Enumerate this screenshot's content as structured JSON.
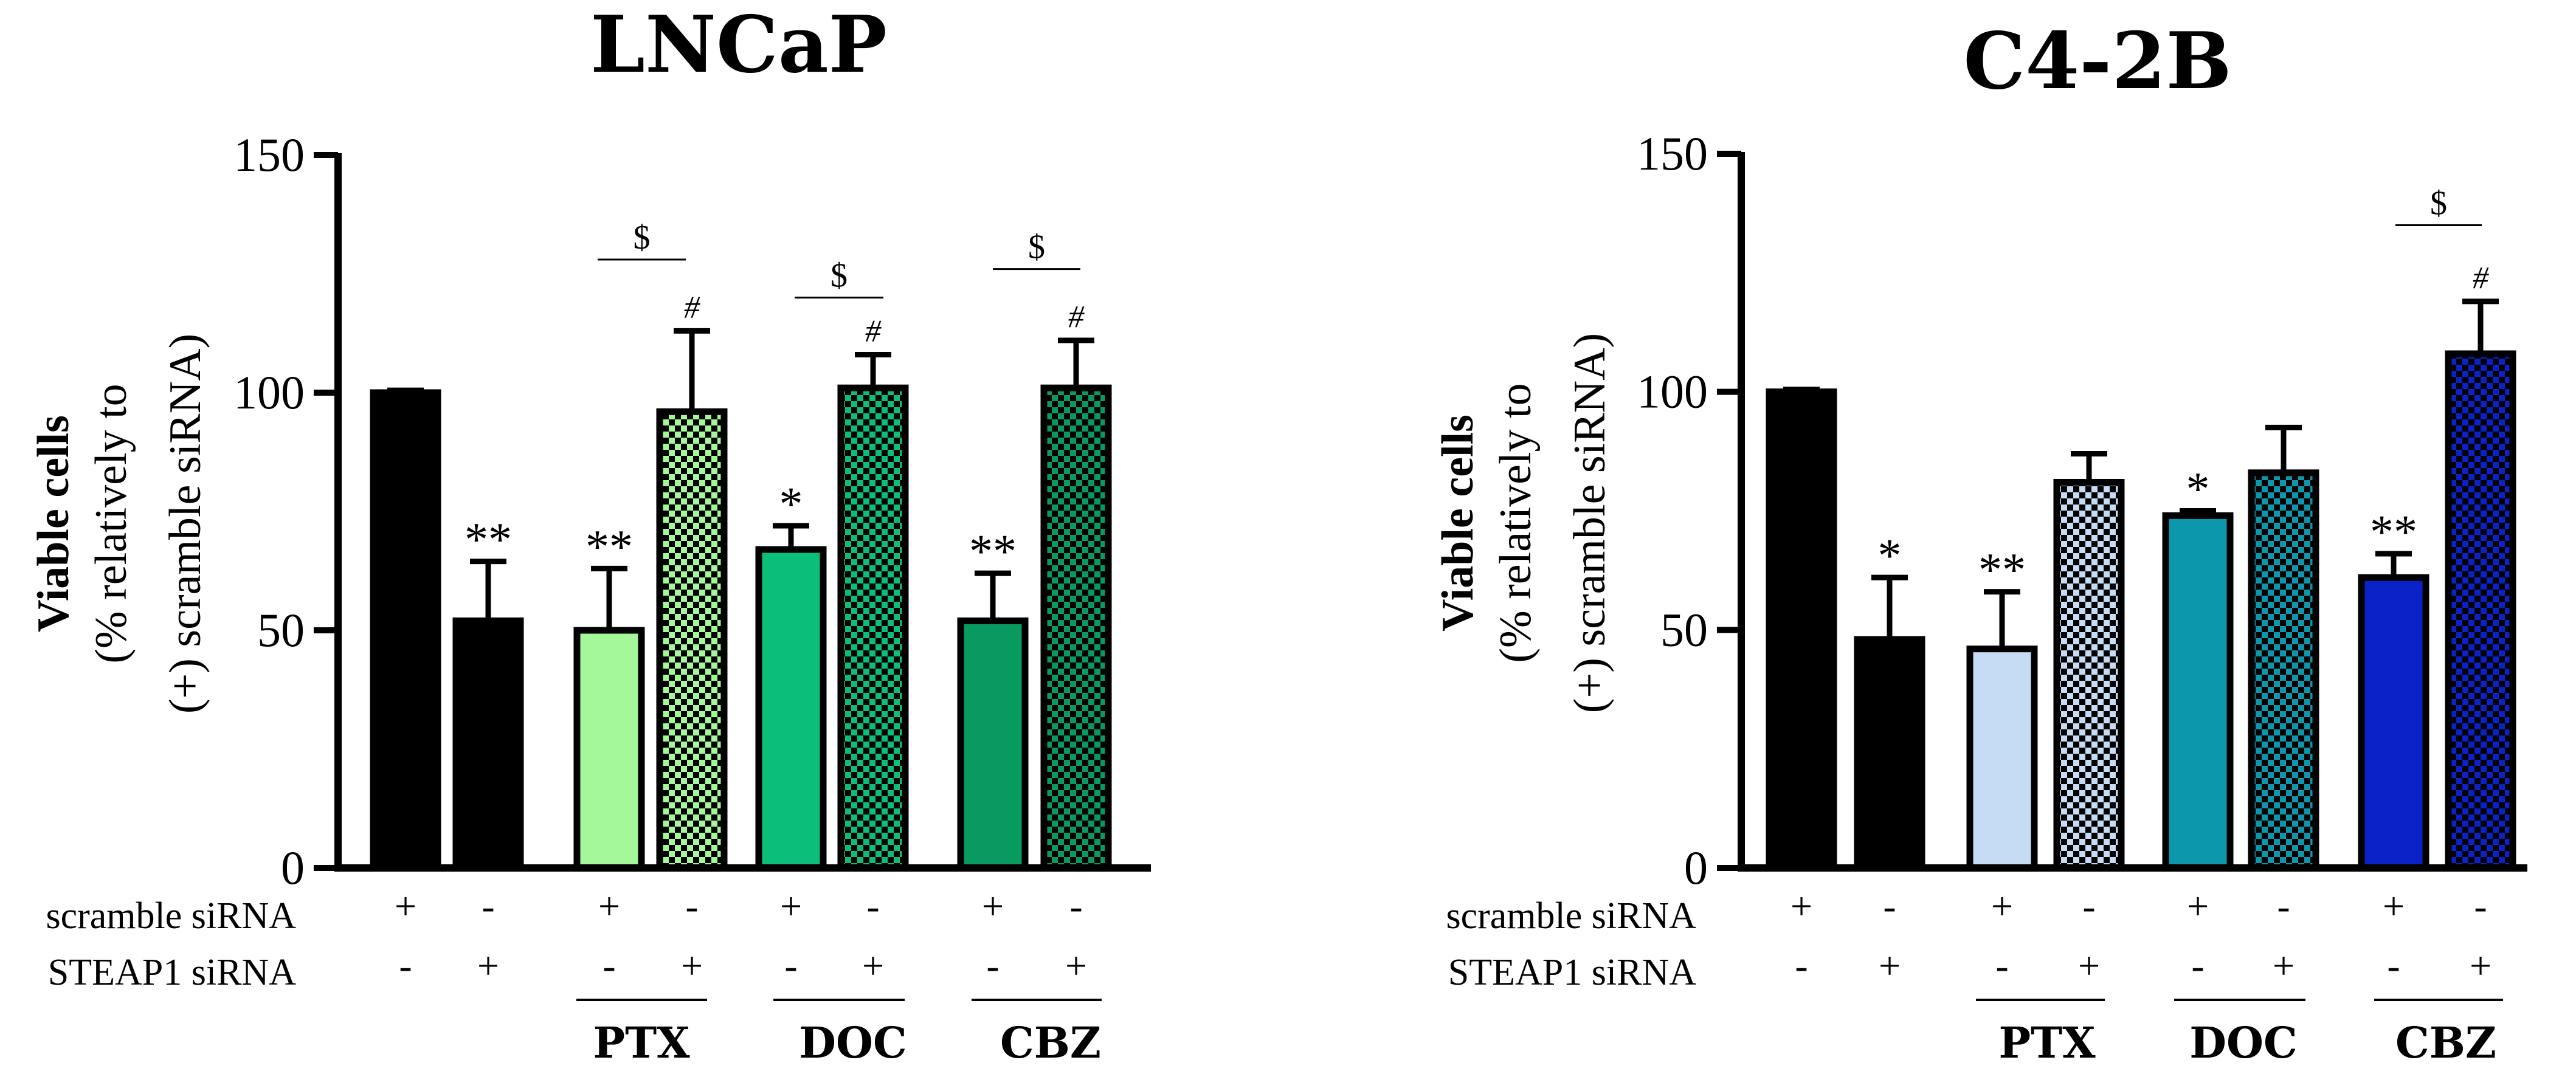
{
  "chart_data": [
    {
      "type": "bar",
      "title": "LNCaP",
      "ylabel": [
        "Viable cells",
        "(% relatively to",
        "(+) scramble siRNA)"
      ],
      "ylim": [
        0,
        150
      ],
      "yticks": [
        "0",
        "50",
        "100",
        "150"
      ],
      "row_labels": [
        "scramble siRNA",
        "STEAP1 siRNA"
      ],
      "groups": [
        "",
        "PTX",
        "DOC",
        "CBZ"
      ],
      "bars": [
        {
          "group": 0,
          "scramble": "+",
          "steap1": "-",
          "value": 100,
          "error": 0.5,
          "color": "#000000",
          "pattern": false,
          "star": ""
        },
        {
          "group": 0,
          "scramble": "-",
          "steap1": "+",
          "value": 52,
          "error": 12.5,
          "color": "#000000",
          "pattern": false,
          "star": "**"
        },
        {
          "group": 1,
          "scramble": "+",
          "steap1": "-",
          "value": 50,
          "error": 13,
          "color": "#a5f89a",
          "pattern": false,
          "star": "**"
        },
        {
          "group": 1,
          "scramble": "-",
          "steap1": "+",
          "value": 96,
          "error": 17,
          "color": "#a5f89a",
          "pattern": true,
          "star": "#"
        },
        {
          "group": 2,
          "scramble": "+",
          "steap1": "-",
          "value": 67,
          "error": 5,
          "color": "#0cbf78",
          "pattern": false,
          "star": "*"
        },
        {
          "group": 2,
          "scramble": "-",
          "steap1": "+",
          "value": 101,
          "error": 7,
          "color": "#0cbf78",
          "pattern": true,
          "star": "#"
        },
        {
          "group": 3,
          "scramble": "+",
          "steap1": "-",
          "value": 52,
          "error": 10,
          "color": "#089a5f",
          "pattern": false,
          "star": "**"
        },
        {
          "group": 3,
          "scramble": "-",
          "steap1": "+",
          "value": 101,
          "error": 10,
          "color": "#089a5f",
          "pattern": true,
          "star": "#"
        }
      ],
      "brackets": [
        {
          "group": 1,
          "label": "$",
          "level": 128
        },
        {
          "group": 2,
          "label": "$",
          "level": 120
        },
        {
          "group": 3,
          "label": "$",
          "level": 126
        }
      ]
    },
    {
      "type": "bar",
      "title": "C4-2B",
      "ylabel": [
        "Viable cells",
        "(% relatively to",
        "(+) scramble siRNA)"
      ],
      "ylim": [
        0,
        150
      ],
      "yticks": [
        "0",
        "50",
        "100",
        "150"
      ],
      "row_labels": [
        "scramble siRNA",
        "STEAP1 siRNA"
      ],
      "groups": [
        "",
        "PTX",
        "DOC",
        "CBZ"
      ],
      "bars": [
        {
          "group": 0,
          "scramble": "+",
          "steap1": "-",
          "value": 100,
          "error": 0.5,
          "color": "#000000",
          "pattern": false,
          "star": ""
        },
        {
          "group": 0,
          "scramble": "-",
          "steap1": "+",
          "value": 48,
          "error": 13,
          "color": "#000000",
          "pattern": false,
          "star": "*"
        },
        {
          "group": 1,
          "scramble": "+",
          "steap1": "-",
          "value": 46,
          "error": 12,
          "color": "#c6dcf5",
          "pattern": false,
          "star": "**"
        },
        {
          "group": 1,
          "scramble": "-",
          "steap1": "+",
          "value": 81,
          "error": 6,
          "color": "#c6dcf5",
          "pattern": true,
          "star": ""
        },
        {
          "group": 2,
          "scramble": "+",
          "steap1": "-",
          "value": 74,
          "error": 1,
          "color": "#0d97ad",
          "pattern": false,
          "star": "*"
        },
        {
          "group": 2,
          "scramble": "-",
          "steap1": "+",
          "value": 83,
          "error": 9.5,
          "color": "#0d97ad",
          "pattern": true,
          "star": ""
        },
        {
          "group": 3,
          "scramble": "+",
          "steap1": "-",
          "value": 61,
          "error": 5,
          "color": "#0a22c8",
          "pattern": false,
          "star": "**"
        },
        {
          "group": 3,
          "scramble": "-",
          "steap1": "+",
          "value": 108,
          "error": 11,
          "color": "#0a22c8",
          "pattern": true,
          "star": "#"
        }
      ],
      "brackets": [
        {
          "group": 3,
          "label": "$",
          "level": 135
        }
      ]
    }
  ]
}
